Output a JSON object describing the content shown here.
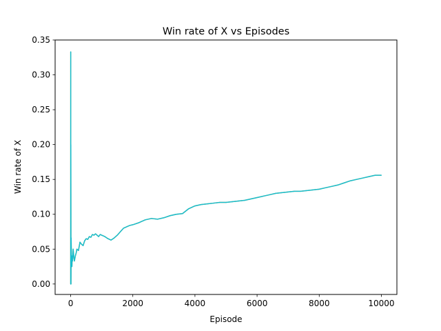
{
  "chart_data": {
    "type": "line",
    "title": "Win rate of X vs Episodes",
    "xlabel": "Episode",
    "ylabel": "Win rate of X",
    "xlim": [
      -500,
      10500
    ],
    "ylim": [
      -0.015,
      0.35
    ],
    "xticks": [
      0,
      2000,
      4000,
      6000,
      8000,
      10000
    ],
    "yticks": [
      0.0,
      0.05,
      0.1,
      0.15,
      0.2,
      0.25,
      0.3,
      0.35
    ],
    "xtick_labels": [
      "0",
      "2000",
      "4000",
      "6000",
      "8000",
      "10000"
    ],
    "ytick_labels": [
      "0.00",
      "0.05",
      "0.10",
      "0.15",
      "0.20",
      "0.25",
      "0.30",
      "0.35"
    ],
    "grid": false,
    "colors": {
      "line": "#17becf",
      "overlay": "#d6a34a"
    },
    "series": [
      {
        "x": [
          1,
          2,
          3,
          5,
          8,
          10,
          15,
          20,
          30,
          40,
          50,
          60,
          80,
          100,
          120,
          150,
          180,
          200,
          250,
          300,
          350,
          400,
          450,
          500,
          550,
          600,
          650,
          700,
          750,
          800,
          850,
          900,
          950,
          1000,
          1100,
          1200,
          1300,
          1400,
          1500,
          1600,
          1700,
          1800,
          1900,
          2000,
          2200,
          2400,
          2600,
          2800,
          3000,
          3200,
          3400,
          3600,
          3800,
          4000,
          4200,
          4400,
          4600,
          4800,
          5000,
          5200,
          5400,
          5600,
          5800,
          6000,
          6200,
          6400,
          6600,
          6800,
          7000,
          7200,
          7400,
          7600,
          7800,
          8000,
          8200,
          8400,
          8600,
          8800,
          9000,
          9200,
          9400,
          9600,
          9800,
          10000
        ],
        "values": [
          0.0,
          0.333,
          0.0,
          0.2,
          0.1,
          0.0,
          0.066,
          0.05,
          0.033,
          0.025,
          0.04,
          0.033,
          0.05,
          0.04,
          0.033,
          0.04,
          0.045,
          0.05,
          0.048,
          0.06,
          0.057,
          0.055,
          0.062,
          0.065,
          0.064,
          0.068,
          0.067,
          0.071,
          0.07,
          0.072,
          0.07,
          0.068,
          0.071,
          0.07,
          0.068,
          0.065,
          0.063,
          0.066,
          0.07,
          0.075,
          0.08,
          0.082,
          0.084,
          0.085,
          0.088,
          0.092,
          0.094,
          0.093,
          0.095,
          0.098,
          0.1,
          0.101,
          0.108,
          0.112,
          0.114,
          0.115,
          0.116,
          0.117,
          0.117,
          0.118,
          0.119,
          0.12,
          0.122,
          0.124,
          0.126,
          0.128,
          0.13,
          0.131,
          0.132,
          0.133,
          0.133,
          0.134,
          0.135,
          0.136,
          0.138,
          0.14,
          0.142,
          0.145,
          0.148,
          0.15,
          0.152,
          0.154,
          0.156,
          0.156
        ]
      }
    ]
  }
}
